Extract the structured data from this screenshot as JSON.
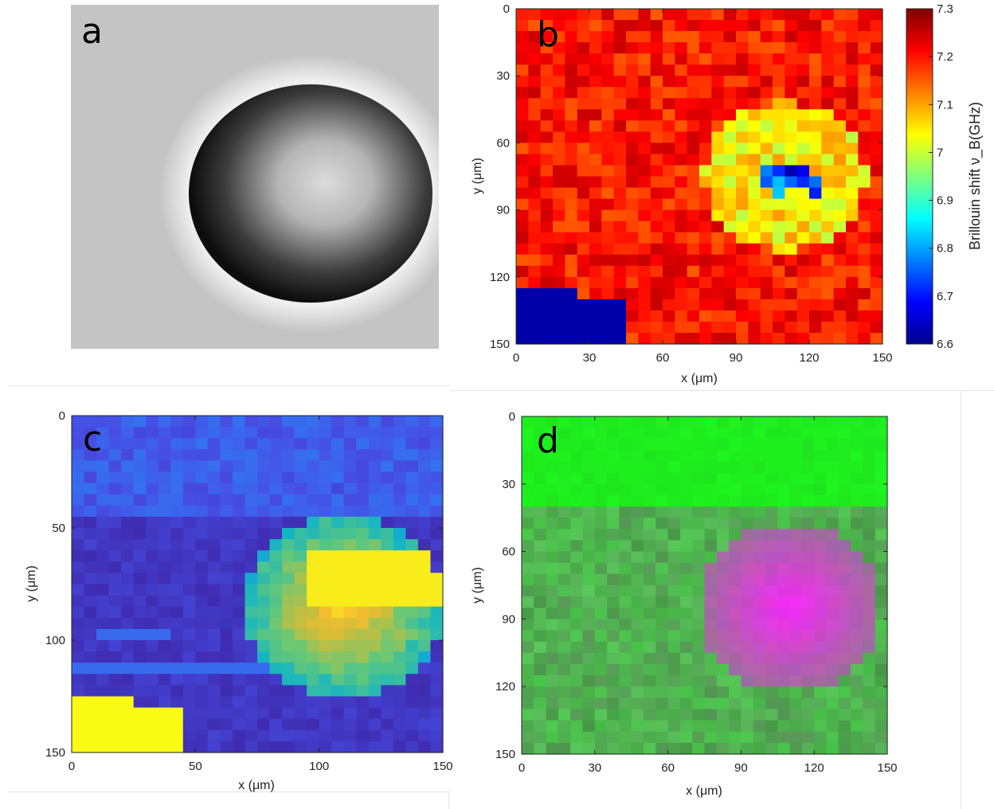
{
  "colors": {
    "jet_low": "#00008f",
    "jet_high": "#800000",
    "parula_low": "#3e26a8",
    "parula_high": "#f9fb15",
    "overlay_green": "#00ee00",
    "overlay_magenta": "#ff00ff"
  },
  "chart_data": [
    {
      "panel": "a",
      "type": "image",
      "label": "a",
      "grayscale": true
    },
    {
      "panel": "b",
      "type": "heatmap",
      "label": "b",
      "colormap": "jet",
      "grid": [
        30,
        30
      ],
      "xlabel": "x (μm)",
      "ylabel": "y (μm)",
      "xlim": [
        0,
        150
      ],
      "ylim": [
        0,
        150
      ],
      "xticks": [
        "0",
        "30",
        "60",
        "90",
        "120",
        "150"
      ],
      "yticks": [
        "0",
        "30",
        "60",
        "90",
        "120",
        "150"
      ],
      "colorbar": {
        "label": "Brillouin shift ν_B(GHz)",
        "range": [
          6.6,
          7.3
        ],
        "ticks": [
          "7.3",
          "7.2",
          "7.1",
          "7",
          "6.9",
          "6.8",
          "6.7",
          "6.6"
        ]
      },
      "background_value": 7.2,
      "cell_value": 7.05,
      "cell_center": [
        110,
        75
      ],
      "cell_radius": 33,
      "low_region": {
        "x": [
          100,
          125
        ],
        "y": [
          65,
          85
        ],
        "value": 6.62
      }
    },
    {
      "panel": "c",
      "type": "heatmap",
      "label": "c",
      "colormap": "parula",
      "grid": [
        30,
        30
      ],
      "xlabel": "x (μm)",
      "ylabel": "y (μm)",
      "xlim": [
        0,
        150
      ],
      "ylim": [
        0,
        150
      ],
      "xticks": [
        "0",
        "50",
        "100",
        "150"
      ],
      "yticks": [
        "0",
        "50",
        "100",
        "150"
      ],
      "cell_center": [
        110,
        85
      ],
      "cell_radius": 40,
      "bright_region": {
        "x": [
          95,
          150
        ],
        "y": [
          60,
          85
        ]
      }
    },
    {
      "panel": "d",
      "type": "heatmap",
      "label": "d",
      "colormap": "green-magenta overlay",
      "grid": [
        30,
        30
      ],
      "xlabel": "x (μm)",
      "ylabel": "y (μm)",
      "xlim": [
        0,
        150
      ],
      "ylim": [
        0,
        150
      ],
      "xticks": [
        "0",
        "30",
        "60",
        "90",
        "120",
        "150"
      ],
      "yticks": [
        "0",
        "30",
        "60",
        "90",
        "120",
        "150"
      ],
      "cell_center": [
        110,
        85
      ],
      "cell_radius": 37
    }
  ]
}
